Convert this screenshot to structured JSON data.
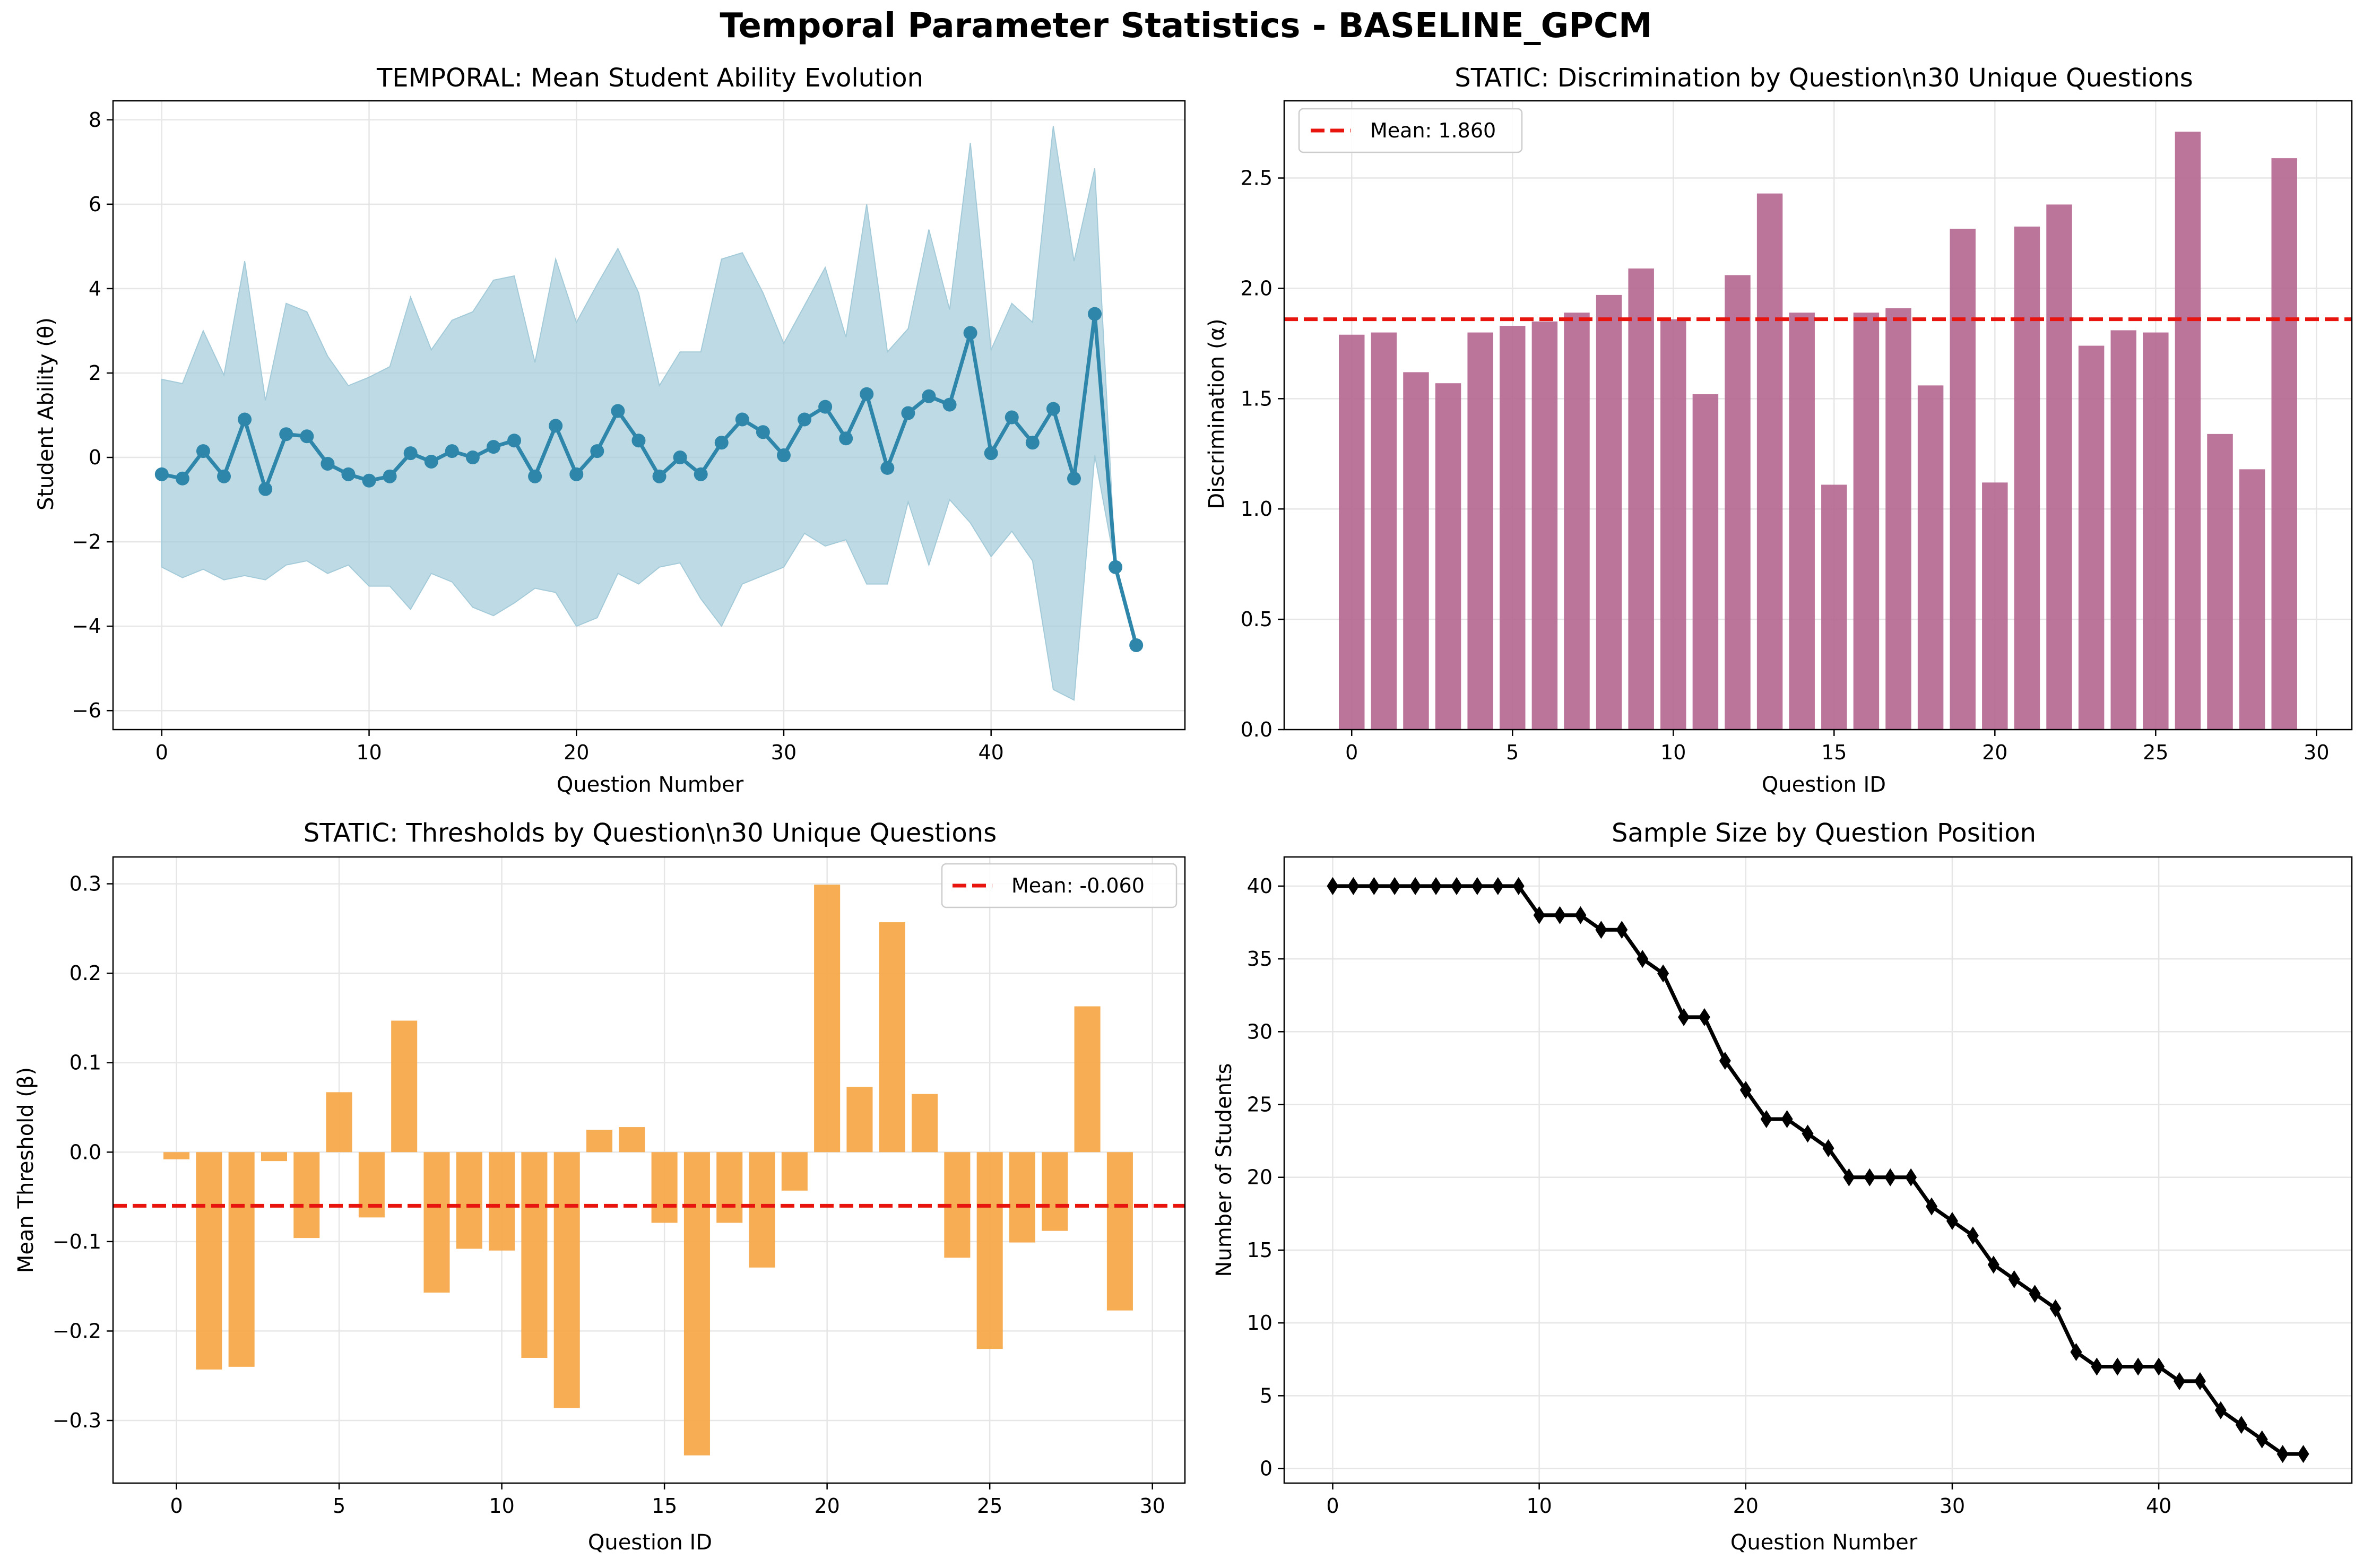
{
  "figure": {
    "title": "Temporal Parameter Statistics - BASELINE_GPCM"
  },
  "colors": {
    "ability_line": "#2E86AB",
    "ability_band": "#A3CAD9",
    "discrimination_bar": "#B5668F",
    "threshold_bar": "#F5A94A",
    "mean_line": "#E8150F",
    "sample_line": "#000000",
    "grid": "#E6E6E6"
  },
  "chart_data": [
    {
      "id": "ability",
      "type": "line",
      "title": "TEMPORAL: Mean Student Ability Evolution",
      "xlabel": "Question Number",
      "ylabel": "Student Ability (θ)",
      "xlim": [
        -2.35,
        49.35
      ],
      "ylim": [
        -6.45,
        8.45
      ],
      "xticks": [
        0,
        10,
        20,
        30,
        40
      ],
      "yticks": [
        -6,
        -4,
        -2,
        0,
        2,
        4,
        6,
        8
      ],
      "grid": true,
      "x": [
        0,
        1,
        2,
        3,
        4,
        5,
        6,
        7,
        8,
        9,
        10,
        11,
        12,
        13,
        14,
        15,
        16,
        17,
        18,
        19,
        20,
        21,
        22,
        23,
        24,
        25,
        26,
        27,
        28,
        29,
        30,
        31,
        32,
        33,
        34,
        35,
        36,
        37,
        38,
        39,
        40,
        41,
        42,
        43,
        44,
        45,
        46,
        47
      ],
      "series": [
        {
          "values": [
            -0.4,
            -0.5,
            0.15,
            -0.45,
            0.9,
            -0.75,
            0.55,
            0.5,
            -0.15,
            -0.4,
            -0.55,
            -0.45,
            0.1,
            -0.1,
            0.15,
            0.0,
            0.25,
            0.4,
            -0.45,
            0.75,
            -0.4,
            0.15,
            1.1,
            0.4,
            -0.45,
            0.0,
            -0.4,
            0.35,
            0.9,
            0.6,
            0.05,
            0.9,
            1.2,
            0.45,
            1.5,
            -0.25,
            1.05,
            1.45,
            1.25,
            2.95,
            0.1,
            0.95,
            0.35,
            1.15,
            -0.5,
            3.4,
            -2.6,
            -4.45
          ],
          "upper": [
            1.85,
            1.75,
            3.0,
            1.95,
            4.65,
            1.35,
            3.65,
            3.45,
            2.4,
            1.7,
            1.9,
            2.15,
            3.8,
            2.55,
            3.25,
            3.45,
            4.2,
            4.3,
            2.25,
            4.7,
            3.2,
            4.1,
            4.95,
            3.9,
            1.7,
            2.5,
            2.5,
            4.7,
            4.85,
            3.9,
            2.7,
            3.6,
            4.5,
            2.85,
            6.0,
            2.5,
            3.05,
            5.4,
            3.5,
            7.45,
            2.55,
            3.65,
            3.2,
            7.85,
            4.65,
            6.85,
            -2.6,
            -4.45
          ],
          "lower": [
            -2.6,
            -2.85,
            -2.65,
            -2.9,
            -2.8,
            -2.9,
            -2.55,
            -2.45,
            -2.75,
            -2.55,
            -3.05,
            -3.05,
            -3.6,
            -2.75,
            -2.95,
            -3.55,
            -3.75,
            -3.45,
            -3.1,
            -3.2,
            -4.0,
            -3.8,
            -2.75,
            -3.0,
            -2.6,
            -2.5,
            -3.35,
            -4.0,
            -3.0,
            -2.8,
            -2.6,
            -1.8,
            -2.1,
            -1.95,
            -3.0,
            -3.0,
            -1.05,
            -2.55,
            -1.0,
            -1.55,
            -2.35,
            -1.75,
            -2.45,
            -5.5,
            -5.75,
            0.05,
            -2.6,
            -4.45
          ]
        }
      ]
    },
    {
      "id": "discrimination",
      "type": "bar",
      "title": "STATIC: Discrimination by Question\\n30 Unique Questions",
      "xlabel": "Question ID",
      "ylabel": "Discrimination (α)",
      "xlim": [
        -2.1,
        31.1
      ],
      "ylim": [
        0,
        2.85
      ],
      "xticks": [
        0,
        5,
        10,
        15,
        20,
        25,
        30
      ],
      "yticks": [
        0.0,
        0.5,
        1.0,
        1.5,
        2.0,
        2.5
      ],
      "ytick_labels": [
        "0.0",
        "0.5",
        "1.0",
        "1.5",
        "2.0",
        "2.5"
      ],
      "grid": true,
      "legend_position": "upper-left",
      "categories": [
        0,
        1,
        2,
        3,
        4,
        5,
        6,
        7,
        8,
        9,
        10,
        11,
        12,
        13,
        14,
        15,
        16,
        17,
        18,
        19,
        20,
        21,
        22,
        23,
        24,
        25,
        26,
        27,
        28,
        29
      ],
      "values": [
        1.79,
        1.8,
        1.62,
        1.57,
        1.8,
        1.83,
        1.85,
        1.89,
        1.97,
        2.09,
        1.86,
        1.52,
        2.06,
        2.43,
        1.89,
        1.11,
        1.89,
        1.91,
        1.56,
        2.27,
        1.12,
        2.28,
        2.38,
        1.74,
        1.81,
        1.8,
        2.71,
        1.34,
        1.18,
        2.59
      ],
      "mean": 1.86,
      "mean_label": "Mean: 1.860"
    },
    {
      "id": "thresholds",
      "type": "bar",
      "title": "STATIC: Thresholds by Question\\n30 Unique Questions",
      "xlabel": "Question ID",
      "ylabel": "Mean Threshold (β)",
      "xlim": [
        -1.95,
        31.0
      ],
      "ylim": [
        -0.37,
        0.33
      ],
      "xticks": [
        0,
        5,
        10,
        15,
        20,
        25,
        30
      ],
      "yticks": [
        -0.3,
        -0.2,
        -0.1,
        0.0,
        0.1,
        0.2,
        0.3
      ],
      "ytick_labels": [
        "−0.3",
        "−0.2",
        "−0.1",
        "0.0",
        "0.1",
        "0.2",
        "0.3"
      ],
      "grid": true,
      "legend_position": "upper-right",
      "categories": [
        0,
        1,
        2,
        3,
        4,
        5,
        6,
        7,
        8,
        9,
        10,
        11,
        12,
        13,
        14,
        15,
        16,
        17,
        18,
        19,
        20,
        21,
        22,
        23,
        24,
        25,
        26,
        27,
        28,
        29
      ],
      "values": [
        -0.008,
        -0.243,
        -0.24,
        -0.01,
        -0.096,
        0.067,
        -0.073,
        0.147,
        -0.157,
        -0.108,
        -0.11,
        -0.23,
        -0.286,
        0.025,
        0.028,
        -0.079,
        -0.339,
        -0.079,
        -0.129,
        -0.043,
        0.299,
        0.073,
        0.257,
        0.065,
        -0.118,
        -0.22,
        -0.101,
        -0.088,
        0.163,
        -0.177
      ],
      "mean": -0.06,
      "mean_label": "Mean: -0.060"
    },
    {
      "id": "sample_size",
      "type": "line",
      "title": "Sample Size by Question Position",
      "xlabel": "Question Number",
      "ylabel": "Number of Students",
      "xlim": [
        -2.35,
        49.35
      ],
      "ylim": [
        -1.0,
        42.0
      ],
      "xticks": [
        0,
        10,
        20,
        30,
        40
      ],
      "yticks": [
        0,
        5,
        10,
        15,
        20,
        25,
        30,
        35,
        40
      ],
      "grid": true,
      "x": [
        0,
        1,
        2,
        3,
        4,
        5,
        6,
        7,
        8,
        9,
        10,
        11,
        12,
        13,
        14,
        15,
        16,
        17,
        18,
        19,
        20,
        21,
        22,
        23,
        24,
        25,
        26,
        27,
        28,
        29,
        30,
        31,
        32,
        33,
        34,
        35,
        36,
        37,
        38,
        39,
        40,
        41,
        42,
        43,
        44,
        45,
        46,
        47
      ],
      "values": [
        40,
        40,
        40,
        40,
        40,
        40,
        40,
        40,
        40,
        40,
        38,
        38,
        38,
        37,
        37,
        35,
        34,
        31,
        31,
        28,
        26,
        24,
        24,
        23,
        22,
        20,
        20,
        20,
        20,
        18,
        17,
        16,
        14,
        13,
        12,
        11,
        8,
        7,
        7,
        7,
        7,
        6,
        6,
        4,
        3,
        2,
        1,
        1
      ]
    }
  ]
}
